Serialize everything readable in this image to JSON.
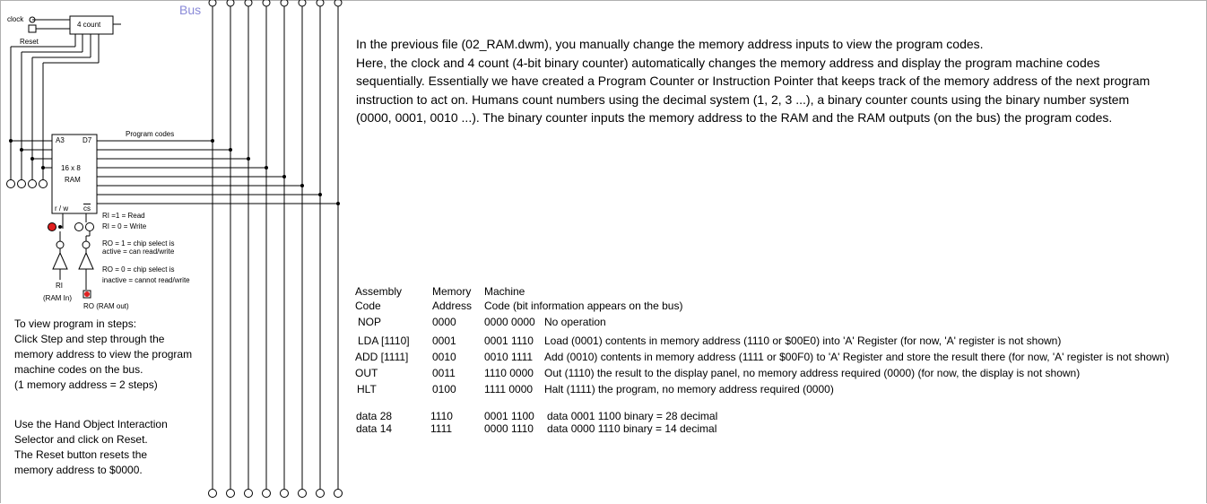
{
  "schematic": {
    "bus_label": "Bus",
    "clock_label": "clock",
    "reset_label": "Reset",
    "counter_label": "4 count",
    "ram_addr_pin": "A3",
    "ram_data_pin": "D7",
    "ram_size": "16 x 8",
    "ram_name": "RAM",
    "ram_rw_pin": "r / w",
    "ram_cs_pin": "cs",
    "program_codes_label": "Program codes",
    "ri_read": "RI =1 = Read",
    "ri_write": "RI = 0 = Write",
    "ro_active_1": "RO = 1 = chip select is",
    "ro_active_2": "active = can read/write",
    "ro_inactive_1": "RO = 0 = chip select is",
    "ro_inactive_2": "inactive = cannot read/write",
    "ri_label": "RI",
    "ri_sub": "(RAM In)",
    "ro_label": "RO (RAM out)",
    "colors": {
      "bus_label": "#8a8ad8",
      "led_on": "#e02020",
      "wire": "#000000"
    }
  },
  "description": {
    "lines": [
      "In the previous file (02_RAM.dwm), you manually change the memory address inputs to view the program codes.",
      "Here, the clock and 4 count (4-bit binary counter) automatically changes the memory address and display the program machine codes",
      "sequentially. Essentially we have created a Program Counter or Instruction Pointer that keeps track of the memory address of the next program",
      "instruction to act on. Humans count numbers using the decimal system (1, 2, 3 ...), a binary counter counts using the binary number system",
      "(0000, 0001, 0010 ...). The binary counter inputs the memory address to the RAM and the RAM outputs (on the bus) the program codes."
    ]
  },
  "steps_note": {
    "lines": [
      "To view program in steps:",
      "Click Step and step through the",
      "memory address to view the program",
      "machine codes on the bus.",
      "(1 memory address = 2 steps)"
    ]
  },
  "reset_note": {
    "lines": [
      "Use the Hand Object Interaction",
      "Selector and click on Reset.",
      "The Reset button resets the",
      "memory address to $0000."
    ]
  },
  "program_table": {
    "headers": {
      "c1a": "Assembly",
      "c1b": "Code",
      "c2a": "Memory",
      "c2b": "Address",
      "c3a": "Machine",
      "c3b": "Code (bit information appears on the bus)"
    },
    "rows": [
      {
        "asm": "NOP",
        "addr": "0000",
        "code": "0000 0000",
        "desc": "No operation"
      },
      {
        "asm": "LDA [1110]",
        "addr": "0001",
        "code": "0001 1110",
        "desc": "Load (0001) contents in memory address (1110 or  $00E0) into 'A' Register (for now, 'A' register is not shown)"
      },
      {
        "asm": "ADD [1111]",
        "addr": "0010",
        "code": "0010 1111",
        "desc": "Add  (0010) contents in memory address (1111 or $00F0) to 'A' Register and store the result there (for now, 'A' register is not shown)"
      },
      {
        "asm": "OUT",
        "addr": "0011",
        "code": "1110 0000",
        "desc": "Out   (1110) the result to the display panel, no memory address required (0000) (for now, the display is not shown)"
      },
      {
        "asm": "HLT",
        "addr": "0100",
        "code": "1111 0000",
        "desc": "Halt  (1111) the program, no memory address required (0000)"
      }
    ],
    "data_rows": [
      {
        "asm": "data 28",
        "addr": "1110",
        "code": "0001 1100",
        "desc": "data 0001 1100 binary = 28 decimal"
      },
      {
        "asm": "data 14",
        "addr": "1111",
        "code": "0000 1110",
        "desc": "data 0000 1110 binary = 14 decimal"
      }
    ]
  }
}
